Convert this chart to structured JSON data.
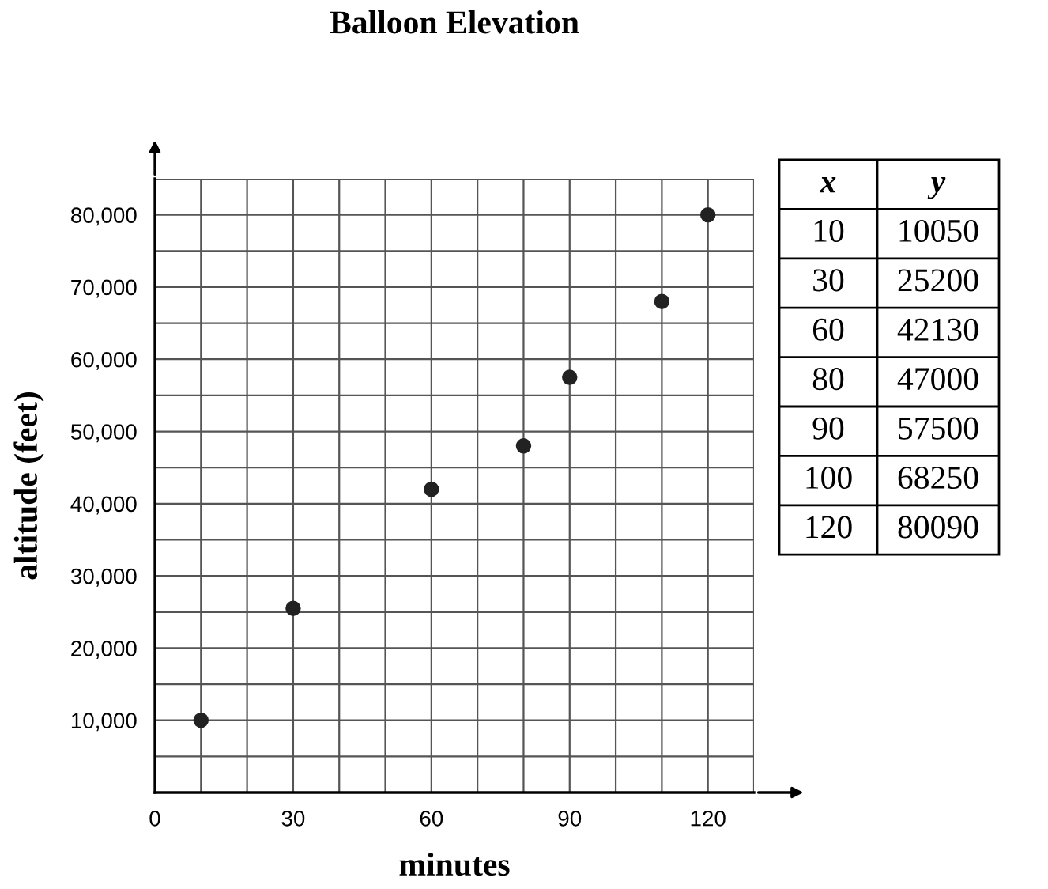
{
  "chart_data": [
    {
      "type": "scatter",
      "title": "Balloon Elevation",
      "xlabel": "minutes",
      "ylabel": "altitude (feet)",
      "x": [
        10,
        30,
        60,
        80,
        90,
        110,
        120
      ],
      "values": [
        10000,
        25500,
        42000,
        48000,
        57500,
        68000,
        80000
      ],
      "color": "#222222",
      "marker": "circle",
      "xlim": [
        0,
        130
      ],
      "ylim": [
        0,
        85000
      ],
      "xticks": [
        0,
        {
          "value": 10,
          "label": null
        },
        {
          "value": 20,
          "label": null
        },
        30,
        {
          "value": 40,
          "label": null
        },
        {
          "value": 50,
          "label": null
        },
        60,
        {
          "value": 70,
          "label": null
        },
        {
          "value": 80,
          "label": null
        },
        90,
        {
          "value": 100,
          "label": null
        },
        {
          "value": 110,
          "label": null
        },
        120,
        {
          "value": 130,
          "label": null
        }
      ],
      "yticks": [
        {
          "value": 0,
          "label": null
        },
        {
          "value": 5000,
          "label": null
        },
        {
          "value": 10000,
          "label": "10,000"
        },
        {
          "value": 15000,
          "label": null
        },
        {
          "value": 20000,
          "label": "20,000"
        },
        {
          "value": 25000,
          "label": null
        },
        {
          "value": 30000,
          "label": "30,000"
        },
        {
          "value": 35000,
          "label": null
        },
        {
          "value": 40000,
          "label": "40,000"
        },
        {
          "value": 45000,
          "label": null
        },
        {
          "value": 50000,
          "label": "50,000"
        },
        {
          "value": 55000,
          "label": null
        },
        {
          "value": 60000,
          "label": "60,000"
        },
        {
          "value": 65000,
          "label": null
        },
        {
          "value": 70000,
          "label": "70,000"
        },
        {
          "value": 75000,
          "label": null
        },
        {
          "value": 80000,
          "label": "80,000"
        },
        {
          "value": 85000,
          "label": null
        }
      ],
      "grid": true
    },
    {
      "type": "other",
      "annotations": [
        "x",
        "y",
        "10",
        "10050",
        "30",
        "25200",
        "60",
        "42130",
        "80",
        "47000",
        "90",
        "57500",
        "100",
        "68250",
        "120",
        "80090"
      ]
    }
  ]
}
